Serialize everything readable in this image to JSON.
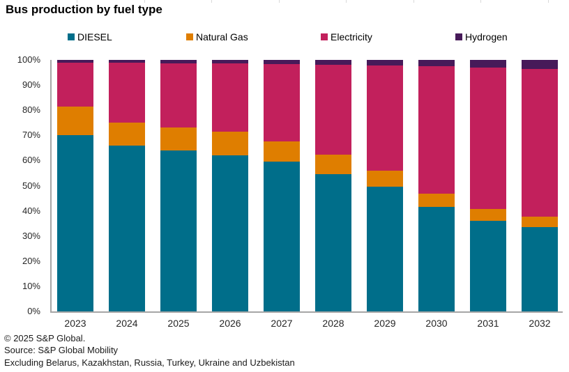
{
  "title": "Bus production by fuel type",
  "footer": {
    "copyright": "© 2025 S&P Global.",
    "source": "Source: S&P Global Mobility",
    "note": "Excluding Belarus, Kazakhstan, Russia, Turkey, Ukraine and Uzbekistan"
  },
  "chart_data": {
    "type": "bar",
    "stacked": true,
    "unit": "percent",
    "title": "Bus production by fuel type",
    "xlabel": "",
    "ylabel": "",
    "ylim": [
      0,
      100
    ],
    "gridlines": false,
    "legend_position": "top",
    "categories": [
      "2023",
      "2024",
      "2025",
      "2026",
      "2027",
      "2028",
      "2029",
      "2030",
      "2031",
      "2032"
    ],
    "y_ticks": [
      "0%",
      "10%",
      "20%",
      "30%",
      "40%",
      "50%",
      "60%",
      "70%",
      "80%",
      "90%",
      "100%"
    ],
    "series": [
      {
        "name": "DIESEL",
        "color": "#006e8a",
        "values": [
          70.0,
          66.0,
          64.0,
          62.0,
          59.5,
          54.5,
          49.5,
          41.5,
          36.0,
          33.5
        ]
      },
      {
        "name": "Natural Gas",
        "color": "#df7e00",
        "values": [
          11.5,
          9.0,
          9.0,
          9.4,
          8.0,
          7.7,
          6.4,
          5.3,
          4.7,
          4.2
        ]
      },
      {
        "name": "Electricity",
        "color": "#c2205c",
        "values": [
          17.5,
          23.8,
          25.7,
          27.1,
          30.7,
          35.9,
          42.0,
          50.6,
          56.3,
          58.8
        ]
      },
      {
        "name": "Hydrogen",
        "color": "#471a59",
        "values": [
          1.0,
          1.2,
          1.3,
          1.5,
          1.8,
          1.9,
          2.1,
          2.6,
          3.0,
          3.5
        ]
      }
    ]
  }
}
